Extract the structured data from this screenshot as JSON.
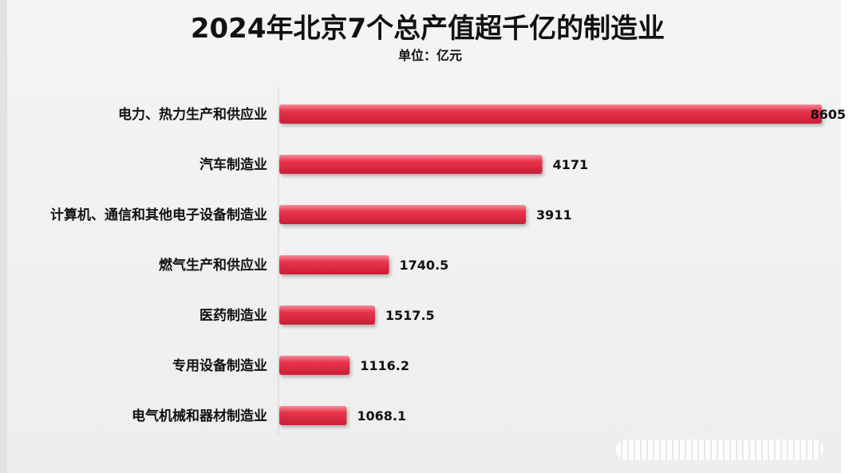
{
  "chart_data": {
    "type": "bar",
    "orientation": "horizontal",
    "title": "2024年北京7个总产值超千亿的制造业",
    "subtitle": "单位：亿元",
    "categories": [
      "电力、热力生产和供应业",
      "汽车制造业",
      "计算机、通信和其他电子设备制造业",
      "燃气生产和供应业",
      "医药制造业",
      "专用设备制造业",
      "电气机械和器材制造业"
    ],
    "values": [
      8605,
      4171,
      3911,
      1740.5,
      1517.5,
      1116.2,
      1068.1
    ],
    "value_labels": [
      "8605",
      "4171",
      "3911",
      "1740.5",
      "1517.5",
      "1116.2",
      "1068.1"
    ],
    "xlim": [
      0,
      8605
    ],
    "bar_color": "#e8334a",
    "grid": false,
    "legend": "none"
  }
}
